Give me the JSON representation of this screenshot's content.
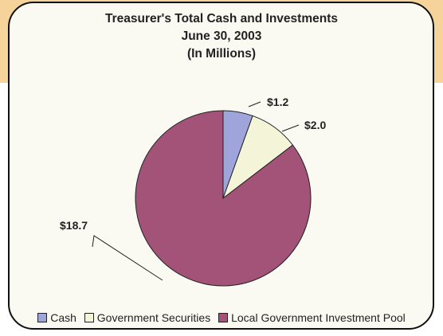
{
  "chart_data": {
    "type": "pie",
    "title": "Treasurer's Total Cash and Investments",
    "subtitle": "June 30, 2003",
    "unit_note": "(In Millions)",
    "categories": [
      "Cash",
      "Government Securities",
      "Local Government Investment Pool"
    ],
    "values": [
      1.2,
      2.0,
      18.7
    ],
    "value_labels": [
      "$1.2",
      "$2.0",
      "$18.7"
    ],
    "colors": [
      "#9fa5db",
      "#f4f4d9",
      "#a35378"
    ],
    "legend_position": "bottom",
    "legend": [
      "Cash",
      "Government Securities",
      "Local Government Investment Pool"
    ]
  }
}
